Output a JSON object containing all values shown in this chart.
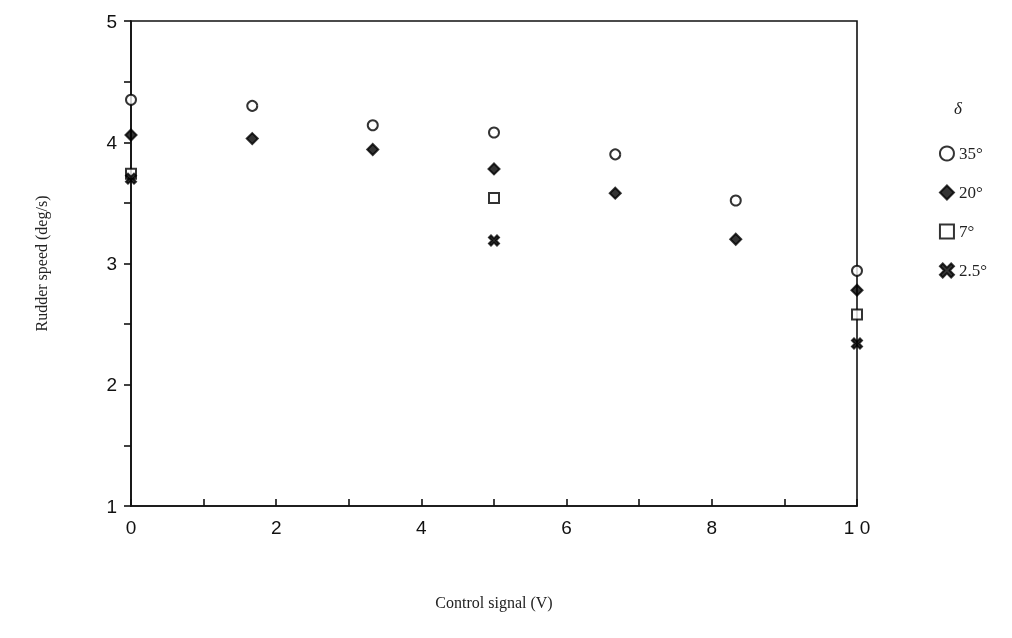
{
  "chart_data": {
    "type": "scatter",
    "xlabel": "Control signal (V)",
    "ylabel": "Rudder speed (deg/s)",
    "legend_title": "δ",
    "legend": "right",
    "grid": false,
    "xlim": [
      0,
      10
    ],
    "xticks": [
      0,
      {
        "value": 1,
        "label": null
      },
      2,
      {
        "value": 3,
        "label": null
      },
      4,
      {
        "value": 5,
        "label": null
      },
      6,
      {
        "value": 7,
        "label": null
      },
      8,
      {
        "value": 9,
        "label": null
      },
      {
        "value": 10,
        "label": "1 0"
      }
    ],
    "ylim": [
      1,
      5
    ],
    "yticks": [
      1,
      {
        "value": 1.5,
        "label": null
      },
      2,
      {
        "value": 2.5,
        "label": null
      },
      3,
      {
        "value": 3.5,
        "label": null
      },
      4,
      {
        "value": 4.5,
        "label": null
      },
      5
    ],
    "series": [
      {
        "name": "35°",
        "color": "#000000",
        "marker": "circle",
        "x": [
          0,
          1.67,
          3.33,
          5,
          6.67,
          8.33,
          10
        ],
        "values": [
          4.35,
          4.3,
          4.14,
          4.08,
          3.9,
          3.52,
          2.94
        ]
      },
      {
        "name": "20°",
        "color": "#000000",
        "marker": "diamond",
        "x": [
          0,
          1.67,
          3.33,
          5,
          6.67,
          8.33,
          10
        ],
        "values": [
          4.06,
          4.03,
          3.94,
          3.78,
          3.58,
          3.2,
          2.78
        ]
      },
      {
        "name": "7°",
        "color": "#000000",
        "marker": "square",
        "x": [
          0,
          5,
          10
        ],
        "values": [
          3.74,
          3.54,
          2.58
        ]
      },
      {
        "name": "2.5°",
        "color": "#000000",
        "marker": "cross",
        "x": [
          0,
          5,
          10
        ],
        "values": [
          3.7,
          3.19,
          2.34
        ]
      }
    ]
  }
}
